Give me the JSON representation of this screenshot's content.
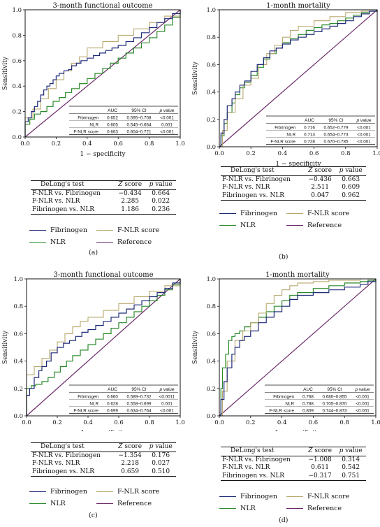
{
  "colors": {
    "fibrinogen": "#1f2a78",
    "nlr": "#2b8a2b",
    "fnlr": "#b8a86e",
    "reference": "#6b2a6b"
  },
  "legend": {
    "fibrinogen": "Fibrinogen",
    "fnlr": "F-NLR score",
    "nlr": "NLR",
    "reference": "Reference"
  },
  "chart_data": [
    {
      "type": "line",
      "panel": "a",
      "title": "3-month functional outcome",
      "xlabel": "1 − specificity",
      "ylabel": "Sensitivity",
      "xlim": [
        0,
        1
      ],
      "ylim": [
        0,
        1
      ],
      "xticks": [
        "0.0",
        "0.2",
        "0.4",
        "0.6",
        "0.8",
        "1.0"
      ],
      "yticks": [
        "0.0",
        "0.2",
        "0.4",
        "0.6",
        "0.8",
        "1.0"
      ],
      "auc_header": {
        "auc": "AUC",
        "ci": "95% CI",
        "p": "p value"
      },
      "auc_rows": [
        {
          "name": "Fibrinogen",
          "auc": "0.652",
          "ci": "0.595–0.708",
          "p": "<0.001"
        },
        {
          "name": "NLR",
          "auc": "0.605",
          "ci": "0.545–0.664",
          "p": "0.001"
        },
        {
          "name": "F-NLR score",
          "auc": "0.663",
          "ci": "0.604–0.721",
          "p": "<0.001"
        }
      ],
      "series": [
        {
          "key": "fibrinogen",
          "x": [
            0,
            0,
            0.02,
            0.04,
            0.06,
            0.08,
            0.1,
            0.12,
            0.14,
            0.16,
            0.18,
            0.2,
            0.22,
            0.25,
            0.28,
            0.3,
            0.33,
            0.36,
            0.4,
            0.44,
            0.48,
            0.52,
            0.56,
            0.6,
            0.65,
            0.7,
            0.75,
            0.8,
            0.85,
            0.9,
            0.95,
            1
          ],
          "y": [
            0,
            0.12,
            0.15,
            0.2,
            0.24,
            0.28,
            0.33,
            0.37,
            0.4,
            0.42,
            0.45,
            0.48,
            0.5,
            0.52,
            0.53,
            0.56,
            0.58,
            0.6,
            0.62,
            0.64,
            0.66,
            0.68,
            0.7,
            0.72,
            0.75,
            0.78,
            0.82,
            0.86,
            0.9,
            0.93,
            0.97,
            1
          ]
        },
        {
          "key": "nlr",
          "x": [
            0,
            0,
            0.03,
            0.06,
            0.1,
            0.14,
            0.18,
            0.22,
            0.26,
            0.3,
            0.35,
            0.4,
            0.45,
            0.5,
            0.55,
            0.6,
            0.65,
            0.7,
            0.75,
            0.8,
            0.85,
            0.9,
            0.95,
            1
          ],
          "y": [
            0,
            0.1,
            0.14,
            0.18,
            0.2,
            0.24,
            0.28,
            0.31,
            0.35,
            0.38,
            0.42,
            0.46,
            0.5,
            0.54,
            0.58,
            0.62,
            0.66,
            0.7,
            0.74,
            0.78,
            0.83,
            0.88,
            0.94,
            1
          ]
        },
        {
          "key": "fnlr",
          "x": [
            0,
            0,
            0.05,
            0.1,
            0.15,
            0.2,
            0.25,
            0.3,
            0.35,
            0.4,
            0.5,
            0.6,
            0.7,
            0.8,
            0.9,
            1
          ],
          "y": [
            0,
            0.15,
            0.22,
            0.3,
            0.38,
            0.45,
            0.52,
            0.58,
            0.63,
            0.7,
            0.75,
            0.8,
            0.85,
            0.9,
            0.95,
            1
          ]
        },
        {
          "key": "reference",
          "x": [
            0,
            1
          ],
          "y": [
            0,
            1
          ]
        }
      ],
      "delong": {
        "header": [
          "DeLong's test",
          "Z score",
          "p value"
        ],
        "rows": [
          [
            "F-NLR vs. Fibrinogen",
            "−0.434",
            "0.664"
          ],
          [
            "F-NLR vs. NLR",
            "2.285",
            "0.022"
          ],
          [
            "Fibrinogen vs. NLR",
            "1.186",
            "0.236"
          ]
        ]
      },
      "caption": "(a)"
    },
    {
      "type": "line",
      "panel": "b",
      "title": "1-month mortality",
      "xlabel": "1 − specificity",
      "ylabel": "Sensitivity",
      "xlim": [
        0,
        1
      ],
      "ylim": [
        0,
        1
      ],
      "xticks": [
        "0.0",
        "0.2",
        "0.4",
        "0.6",
        "0.8",
        "1.0"
      ],
      "yticks": [
        "0.0",
        "0.2",
        "0.4",
        "0.6",
        "0.8",
        "1.0"
      ],
      "auc_header": {
        "auc": "AUC",
        "ci": "95% CI",
        "p": "p value"
      },
      "auc_rows": [
        {
          "name": "Fibrinogen",
          "auc": "0.716",
          "ci": "0.652–0.779",
          "p": "<0.001"
        },
        {
          "name": "NLR",
          "auc": "0.713",
          "ci": "0.654–0.773",
          "p": "<0.001"
        },
        {
          "name": "F-NLR score",
          "auc": "0.728",
          "ci": "0.670–0.785",
          "p": "<0.001"
        }
      ],
      "series": [
        {
          "key": "fibrinogen",
          "x": [
            0,
            0.01,
            0.03,
            0.05,
            0.08,
            0.1,
            0.13,
            0.16,
            0.2,
            0.24,
            0.28,
            0.32,
            0.36,
            0.4,
            0.45,
            0.5,
            0.55,
            0.6,
            0.65,
            0.7,
            0.75,
            0.8,
            0.85,
            0.9,
            0.95,
            1
          ],
          "y": [
            0,
            0.1,
            0.2,
            0.3,
            0.35,
            0.4,
            0.45,
            0.48,
            0.55,
            0.6,
            0.65,
            0.7,
            0.72,
            0.75,
            0.78,
            0.8,
            0.82,
            0.84,
            0.86,
            0.88,
            0.9,
            0.92,
            0.95,
            0.97,
            0.99,
            1
          ]
        },
        {
          "key": "nlr",
          "x": [
            0,
            0.01,
            0.03,
            0.05,
            0.08,
            0.1,
            0.13,
            0.16,
            0.2,
            0.24,
            0.28,
            0.32,
            0.36,
            0.4,
            0.45,
            0.5,
            0.55,
            0.6,
            0.65,
            0.7,
            0.75,
            0.8,
            0.85,
            0.9,
            0.95,
            1
          ],
          "y": [
            0,
            0.08,
            0.17,
            0.25,
            0.32,
            0.38,
            0.43,
            0.47,
            0.52,
            0.58,
            0.64,
            0.68,
            0.72,
            0.76,
            0.79,
            0.82,
            0.85,
            0.87,
            0.89,
            0.9,
            0.92,
            0.94,
            0.96,
            0.98,
            0.99,
            1
          ]
        },
        {
          "key": "fnlr",
          "x": [
            0,
            0.02,
            0.05,
            0.1,
            0.15,
            0.2,
            0.25,
            0.3,
            0.35,
            0.4,
            0.45,
            0.5,
            0.6,
            0.7,
            0.8,
            0.9,
            1
          ],
          "y": [
            0,
            0.12,
            0.25,
            0.35,
            0.45,
            0.5,
            0.6,
            0.68,
            0.74,
            0.8,
            0.85,
            0.88,
            0.92,
            0.95,
            0.98,
            0.99,
            1
          ]
        },
        {
          "key": "reference",
          "x": [
            0,
            1
          ],
          "y": [
            0,
            1
          ]
        }
      ],
      "delong": {
        "header": [
          "DeLong's test",
          "Z score",
          "p value"
        ],
        "rows": [
          [
            "F-NLR vs. Fibrinogen",
            "−0.436",
            "0.663"
          ],
          [
            "F-NLR vs. NLR",
            "2.511",
            "0.609"
          ],
          [
            "Fibrinogen vs. NLR",
            "0.047",
            "0.962"
          ]
        ]
      },
      "caption": "(b)"
    },
    {
      "type": "line",
      "panel": "c",
      "title": "3-month functional outcome",
      "xlabel": "1 − specificity",
      "ylabel": "Sensitivity",
      "xlim": [
        0,
        1
      ],
      "ylim": [
        0,
        1
      ],
      "xticks": [
        "0.0",
        "0.2",
        "0.4",
        "0.6",
        "0.8",
        "1.0"
      ],
      "yticks": [
        "0.0",
        "0.2",
        "0.4",
        "0.6",
        "0.8",
        "1.0"
      ],
      "auc_header": {
        "auc": "AUC",
        "ci": "95% CI",
        "p": "p value"
      },
      "auc_rows": [
        {
          "name": "Fibrinogen",
          "auc": "0.660",
          "ci": "0.589–0.732",
          "p": "<0.0011"
        },
        {
          "name": "NLR",
          "auc": "0.628",
          "ci": "0.558–0.699",
          "p": "0.001"
        },
        {
          "name": "F-NLR score",
          "auc": "0.699",
          "ci": "0.634–0.764",
          "p": "<0.001"
        }
      ],
      "series": [
        {
          "key": "fibrinogen",
          "x": [
            0,
            0,
            0.02,
            0.05,
            0.08,
            0.1,
            0.13,
            0.16,
            0.2,
            0.24,
            0.28,
            0.32,
            0.36,
            0.4,
            0.45,
            0.5,
            0.55,
            0.6,
            0.65,
            0.7,
            0.75,
            0.8,
            0.85,
            0.9,
            0.95,
            1
          ],
          "y": [
            0,
            0.15,
            0.2,
            0.28,
            0.33,
            0.36,
            0.4,
            0.46,
            0.5,
            0.53,
            0.55,
            0.58,
            0.61,
            0.63,
            0.66,
            0.69,
            0.72,
            0.75,
            0.78,
            0.81,
            0.84,
            0.87,
            0.9,
            0.93,
            0.97,
            1
          ]
        },
        {
          "key": "nlr",
          "x": [
            0,
            0,
            0.03,
            0.06,
            0.1,
            0.14,
            0.18,
            0.22,
            0.26,
            0.3,
            0.35,
            0.4,
            0.45,
            0.5,
            0.55,
            0.6,
            0.65,
            0.7,
            0.75,
            0.8,
            0.85,
            0.9,
            0.95,
            1
          ],
          "y": [
            0,
            0.2,
            0.22,
            0.23,
            0.25,
            0.28,
            0.32,
            0.36,
            0.4,
            0.44,
            0.48,
            0.52,
            0.56,
            0.6,
            0.64,
            0.68,
            0.72,
            0.76,
            0.8,
            0.84,
            0.88,
            0.92,
            0.96,
            1
          ]
        },
        {
          "key": "fnlr",
          "x": [
            0,
            0,
            0.05,
            0.1,
            0.15,
            0.2,
            0.25,
            0.3,
            0.35,
            0.4,
            0.5,
            0.6,
            0.7,
            0.8,
            0.9,
            1
          ],
          "y": [
            0,
            0.3,
            0.36,
            0.42,
            0.48,
            0.54,
            0.6,
            0.65,
            0.69,
            0.72,
            0.77,
            0.82,
            0.87,
            0.91,
            0.95,
            1
          ]
        },
        {
          "key": "reference",
          "x": [
            0,
            1
          ],
          "y": [
            0,
            1
          ]
        }
      ],
      "delong": {
        "header": [
          "DeLong's test",
          "Z score",
          "p value"
        ],
        "rows": [
          [
            "F-NLR vs. Fibrinogen",
            "−1.354",
            "0.176"
          ],
          [
            "F-NLR vs. NLR",
            "2.218",
            "0.027"
          ],
          [
            "Fibrinogen vs. NLR",
            "0.659",
            "0.510"
          ]
        ]
      },
      "caption": "(c)"
    },
    {
      "type": "line",
      "panel": "d",
      "title": "1-month mortality",
      "xlabel": "1 − specificity",
      "ylabel": "Sensitivity",
      "xlim": [
        0,
        1
      ],
      "ylim": [
        0,
        1
      ],
      "xticks": [
        "0.0",
        "0.2",
        "0.4",
        "0.6",
        "0.8",
        "1.0"
      ],
      "yticks": [
        "0.0",
        "0.2",
        "0.4",
        "0.6",
        "0.8",
        "1.0"
      ],
      "auc_header": {
        "auc": "AUC",
        "ci": "95% CI",
        "p": "p value"
      },
      "auc_rows": [
        {
          "name": "Fibrinogen",
          "auc": "0.768",
          "ci": "0.680–0.855",
          "p": "<0.001"
        },
        {
          "name": "NLR",
          "auc": "0.788",
          "ci": "0.705–0.870",
          "p": "<0.001"
        },
        {
          "name": "F-NLR score",
          "auc": "0.809",
          "ci": "0.744–0.873",
          "p": "<0.001"
        }
      ],
      "series": [
        {
          "key": "fibrinogen",
          "x": [
            0,
            0.01,
            0.03,
            0.05,
            0.08,
            0.1,
            0.13,
            0.16,
            0.2,
            0.25,
            0.3,
            0.35,
            0.4,
            0.45,
            0.5,
            0.6,
            0.7,
            0.8,
            0.9,
            0.95,
            1
          ],
          "y": [
            0,
            0.12,
            0.25,
            0.35,
            0.45,
            0.5,
            0.55,
            0.58,
            0.62,
            0.68,
            0.72,
            0.76,
            0.8,
            0.85,
            0.88,
            0.9,
            0.92,
            0.94,
            0.96,
            0.98,
            1
          ]
        },
        {
          "key": "nlr",
          "x": [
            0,
            0.01,
            0.02,
            0.04,
            0.06,
            0.08,
            0.1,
            0.13,
            0.16,
            0.2,
            0.25,
            0.3,
            0.35,
            0.4,
            0.45,
            0.5,
            0.6,
            0.7,
            0.8,
            0.9,
            0.95,
            1
          ],
          "y": [
            0,
            0.2,
            0.35,
            0.45,
            0.55,
            0.58,
            0.6,
            0.62,
            0.65,
            0.68,
            0.72,
            0.76,
            0.8,
            0.84,
            0.88,
            0.9,
            0.93,
            0.95,
            0.97,
            0.98,
            0.99,
            1
          ]
        },
        {
          "key": "fnlr",
          "x": [
            0,
            0.02,
            0.05,
            0.1,
            0.15,
            0.2,
            0.25,
            0.3,
            0.35,
            0.4,
            0.45,
            0.5,
            0.6,
            0.7,
            0.8,
            0.9,
            1
          ],
          "y": [
            0,
            0.18,
            0.4,
            0.55,
            0.62,
            0.68,
            0.75,
            0.82,
            0.88,
            0.92,
            0.95,
            0.97,
            0.98,
            0.99,
            0.99,
            1,
            1
          ]
        },
        {
          "key": "reference",
          "x": [
            0,
            1
          ],
          "y": [
            0,
            1
          ]
        }
      ],
      "delong": {
        "header": [
          "DeLong's test",
          "Z score",
          "p value"
        ],
        "rows": [
          [
            "F-NLR vs. Fibrinogen",
            "−1.008",
            "0.314"
          ],
          [
            "F-NLR vs. NLR",
            "0.611",
            "0.542"
          ],
          [
            "Fibrinogen vs. NLR",
            "−0.317",
            "0.751"
          ]
        ]
      },
      "caption": "(d)"
    }
  ]
}
